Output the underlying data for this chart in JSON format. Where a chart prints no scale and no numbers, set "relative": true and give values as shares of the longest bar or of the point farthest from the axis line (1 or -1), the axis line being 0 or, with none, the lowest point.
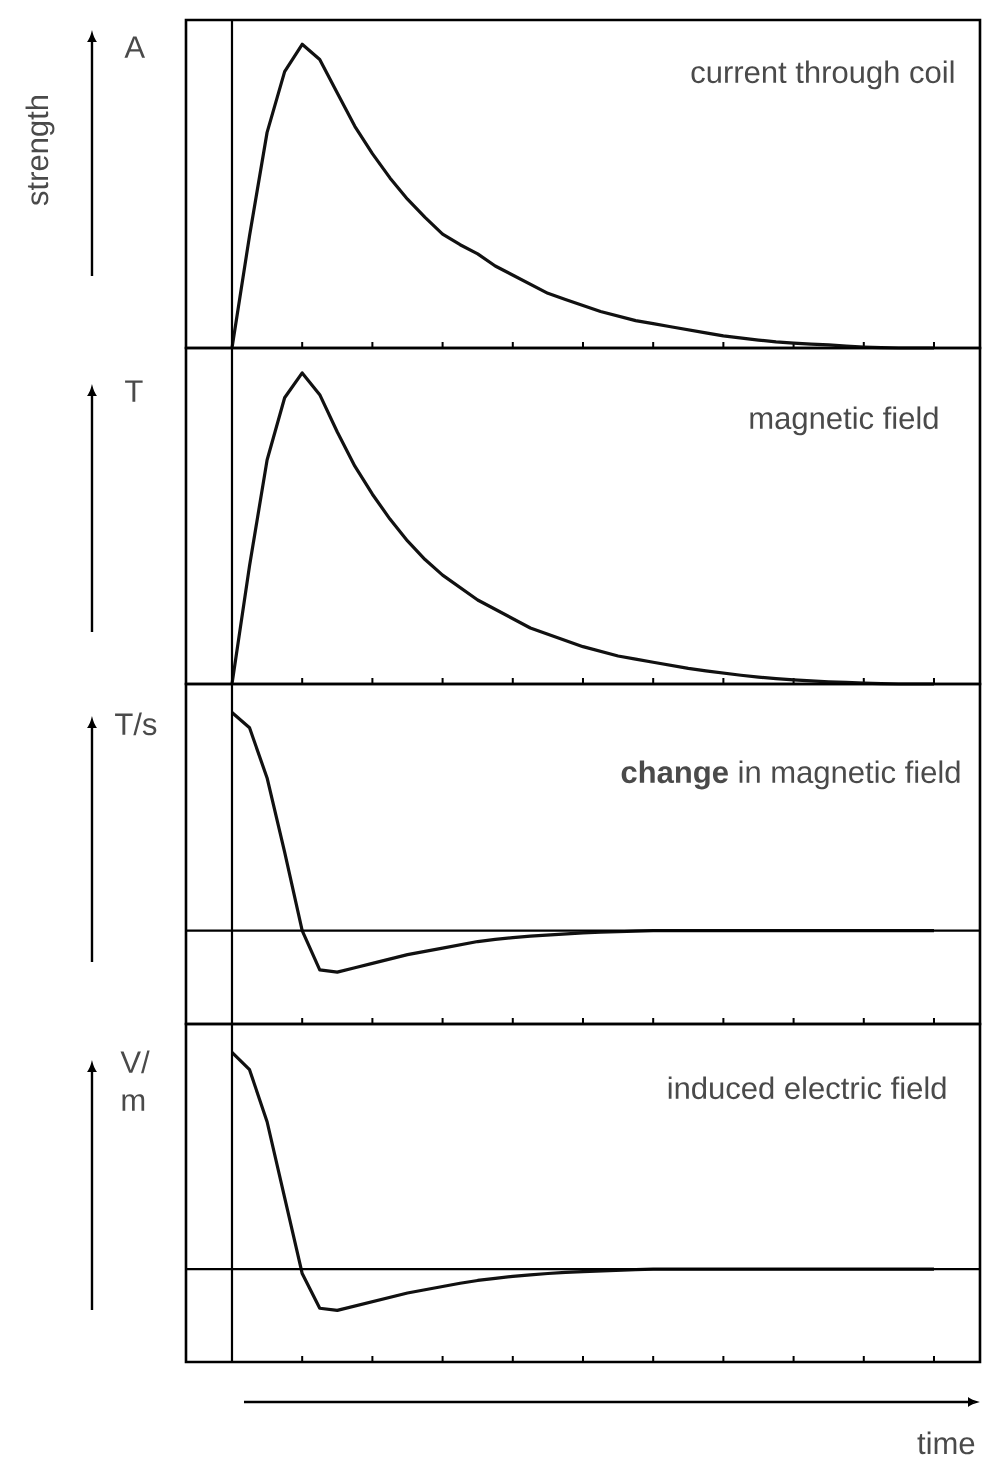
{
  "chart_data": [
    {
      "type": "line",
      "relative": true,
      "tick_labels": false,
      "title": "current through coil",
      "ylabel": "A",
      "annotations": [
        "strength"
      ],
      "color": "#111111",
      "categories": [
        null,
        null,
        null,
        null,
        null,
        null,
        null,
        null,
        null,
        null,
        null,
        null,
        null,
        null,
        null,
        null,
        null,
        null,
        null,
        null,
        null,
        null,
        null,
        null,
        null,
        null,
        null,
        null,
        null,
        null,
        null,
        null,
        null,
        null,
        null,
        null,
        null,
        null,
        null,
        null,
        null
      ],
      "values": [
        0,
        0.37,
        0.71,
        0.91,
        1.0,
        0.95,
        0.84,
        0.73,
        0.64,
        0.56,
        0.49,
        0.43,
        0.375,
        0.34,
        0.31,
        0.27,
        0.24,
        0.21,
        0.18,
        0.16,
        0.14,
        0.12,
        0.105,
        0.09,
        0.08,
        0.07,
        0.06,
        0.05,
        0.04,
        0.033,
        0.026,
        0.02,
        0.016,
        0.013,
        0.01,
        0.006,
        0.003,
        0.001,
        0,
        0,
        0
      ]
    },
    {
      "type": "line",
      "relative": true,
      "tick_labels": false,
      "title": "magnetic field",
      "ylabel": "T",
      "color": "#111111",
      "categories": [
        null,
        null,
        null,
        null,
        null,
        null,
        null,
        null,
        null,
        null,
        null,
        null,
        null,
        null,
        null,
        null,
        null,
        null,
        null,
        null,
        null,
        null,
        null,
        null,
        null,
        null,
        null,
        null,
        null,
        null,
        null,
        null,
        null,
        null,
        null,
        null,
        null,
        null,
        null,
        null,
        null
      ],
      "values": [
        0,
        0.38,
        0.72,
        0.92,
        1.0,
        0.93,
        0.81,
        0.7,
        0.61,
        0.53,
        0.46,
        0.4,
        0.35,
        0.31,
        0.27,
        0.24,
        0.21,
        0.18,
        0.16,
        0.14,
        0.12,
        0.105,
        0.09,
        0.08,
        0.07,
        0.06,
        0.05,
        0.042,
        0.035,
        0.028,
        0.022,
        0.017,
        0.013,
        0.01,
        0.007,
        0.005,
        0.003,
        0.001,
        0,
        0,
        0
      ]
    },
    {
      "type": "line",
      "relative": true,
      "tick_labels": false,
      "title": "**change** in magnetic field",
      "ylabel": "T/s",
      "color": "#111111",
      "categories": [
        null,
        null,
        null,
        null,
        null,
        null,
        null,
        null,
        null,
        null,
        null,
        null,
        null,
        null,
        null,
        null,
        null,
        null,
        null,
        null,
        null,
        null,
        null,
        null,
        null,
        null,
        null,
        null,
        null,
        null,
        null,
        null,
        null,
        null,
        null,
        null,
        null,
        null,
        null,
        null,
        null
      ],
      "values": [
        1.0,
        0.93,
        0.7,
        0.36,
        0.0,
        -0.18,
        -0.19,
        -0.17,
        -0.15,
        -0.13,
        -0.11,
        -0.095,
        -0.08,
        -0.065,
        -0.05,
        -0.04,
        -0.032,
        -0.025,
        -0.02,
        -0.015,
        -0.01,
        -0.007,
        -0.005,
        -0.002,
        0,
        0,
        0,
        0,
        0,
        0,
        0,
        0,
        0,
        0,
        0,
        0,
        0,
        0,
        0,
        0,
        0
      ]
    },
    {
      "type": "line",
      "relative": true,
      "tick_labels": false,
      "title": "induced electric field",
      "ylabel": "V/ m",
      "xlabel": "time",
      "color": "#111111",
      "categories": [
        null,
        null,
        null,
        null,
        null,
        null,
        null,
        null,
        null,
        null,
        null,
        null,
        null,
        null,
        null,
        null,
        null,
        null,
        null,
        null,
        null,
        null,
        null,
        null,
        null,
        null,
        null,
        null,
        null,
        null,
        null,
        null,
        null,
        null,
        null,
        null,
        null,
        null,
        null,
        null,
        null
      ],
      "values": [
        1.0,
        0.92,
        0.68,
        0.33,
        -0.02,
        -0.18,
        -0.19,
        -0.17,
        -0.15,
        -0.13,
        -0.11,
        -0.095,
        -0.08,
        -0.065,
        -0.052,
        -0.042,
        -0.033,
        -0.026,
        -0.02,
        -0.015,
        -0.011,
        -0.008,
        -0.005,
        -0.002,
        0,
        0,
        0,
        0,
        0,
        0,
        0,
        0,
        0,
        0,
        0,
        0,
        0,
        0,
        0,
        0,
        0
      ]
    }
  ]
}
